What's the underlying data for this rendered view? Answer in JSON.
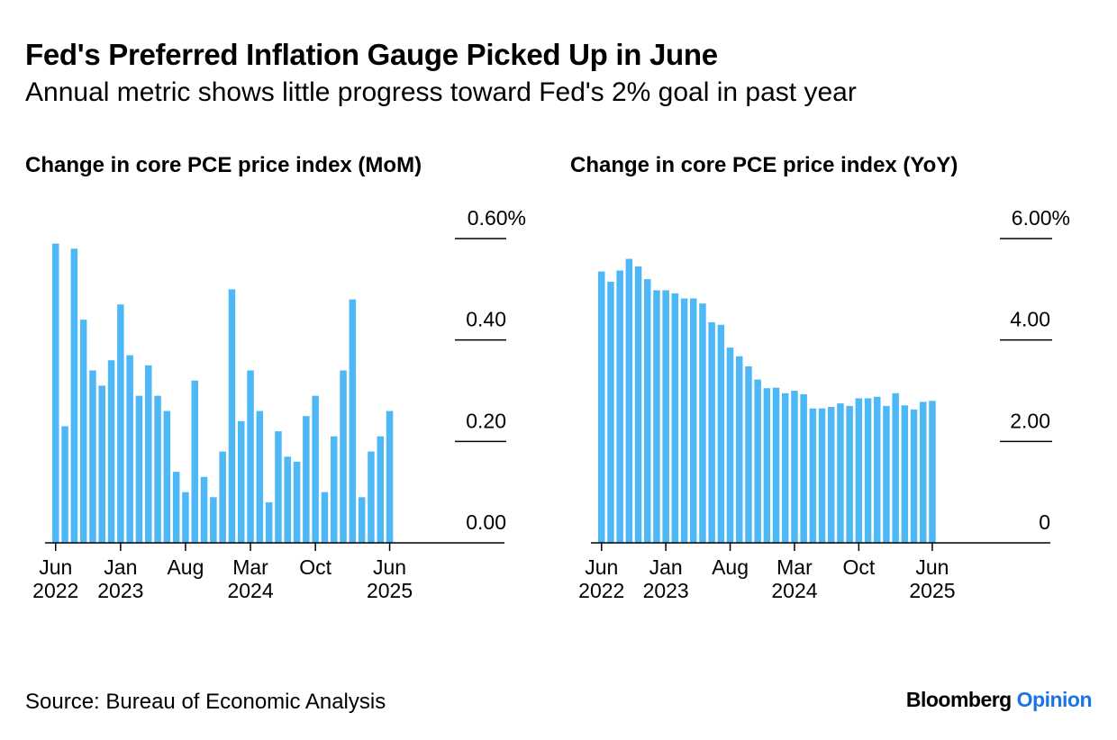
{
  "header": {
    "title": "Fed's Preferred Inflation Gauge Picked Up in June",
    "subtitle": "Annual metric shows little progress toward Fed's 2% goal in past year"
  },
  "footer": {
    "source": "Source: Bureau of Economic Analysis",
    "brand_main": "Bloomberg",
    "brand_accent": "Opinion"
  },
  "colors": {
    "bar": "#4db8f5",
    "axis": "#000000",
    "brand_accent": "#1a73e8"
  },
  "chart_data": [
    {
      "type": "bar",
      "title": "Change in core PCE price index (MoM)",
      "xlabel": "",
      "ylabel": "",
      "ylim": [
        0,
        0.6
      ],
      "y_ticks": [
        {
          "value": 0.6,
          "label": "0.60%"
        },
        {
          "value": 0.4,
          "label": "0.40"
        },
        {
          "value": 0.2,
          "label": "0.20"
        },
        {
          "value": 0.0,
          "label": "0.00"
        }
      ],
      "x_ticks": [
        {
          "index": 0,
          "label_top": "Jun",
          "label_bottom": "2022"
        },
        {
          "index": 7,
          "label_top": "Jan",
          "label_bottom": "2023"
        },
        {
          "index": 14,
          "label_top": "Aug",
          "label_bottom": ""
        },
        {
          "index": 21,
          "label_top": "Mar",
          "label_bottom": "2024"
        },
        {
          "index": 28,
          "label_top": "Oct",
          "label_bottom": ""
        },
        {
          "index": 36,
          "label_top": "Jun",
          "label_bottom": "2025"
        }
      ],
      "categories": [
        "Jun 2022",
        "Jul 2022",
        "Aug 2022",
        "Sep 2022",
        "Oct 2022",
        "Nov 2022",
        "Dec 2022",
        "Jan 2023",
        "Feb 2023",
        "Mar 2023",
        "Apr 2023",
        "May 2023",
        "Jun 2023",
        "Jul 2023",
        "Aug 2023",
        "Sep 2023",
        "Oct 2023",
        "Nov 2023",
        "Dec 2023",
        "Jan 2024",
        "Feb 2024",
        "Mar 2024",
        "Apr 2024",
        "May 2024",
        "Jun 2024",
        "Jul 2024",
        "Aug 2024",
        "Sep 2024",
        "Oct 2024",
        "Nov 2024",
        "Dec 2024",
        "Jan 2025",
        "Feb 2025",
        "Mar 2025",
        "Apr 2025",
        "May 2025",
        "Jun 2025"
      ],
      "values": [
        0.59,
        0.23,
        0.58,
        0.44,
        0.34,
        0.31,
        0.36,
        0.47,
        0.37,
        0.29,
        0.35,
        0.29,
        0.26,
        0.14,
        0.1,
        0.32,
        0.13,
        0.09,
        0.18,
        0.5,
        0.24,
        0.34,
        0.26,
        0.08,
        0.22,
        0.17,
        0.16,
        0.25,
        0.29,
        0.1,
        0.21,
        0.34,
        0.48,
        0.09,
        0.18,
        0.21,
        0.26
      ]
    },
    {
      "type": "bar",
      "title": "Change in core PCE price index (YoY)",
      "xlabel": "",
      "ylabel": "",
      "ylim": [
        0,
        6
      ],
      "y_ticks": [
        {
          "value": 6,
          "label": "6.00%"
        },
        {
          "value": 4,
          "label": "4.00"
        },
        {
          "value": 2,
          "label": "2.00"
        },
        {
          "value": 0,
          "label": "0"
        }
      ],
      "x_ticks": [
        {
          "index": 0,
          "label_top": "Jun",
          "label_bottom": "2022"
        },
        {
          "index": 7,
          "label_top": "Jan",
          "label_bottom": "2023"
        },
        {
          "index": 14,
          "label_top": "Aug",
          "label_bottom": ""
        },
        {
          "index": 21,
          "label_top": "Mar",
          "label_bottom": "2024"
        },
        {
          "index": 28,
          "label_top": "Oct",
          "label_bottom": ""
        },
        {
          "index": 36,
          "label_top": "Jun",
          "label_bottom": "2025"
        }
      ],
      "categories": [
        "Jun 2022",
        "Jul 2022",
        "Aug 2022",
        "Sep 2022",
        "Oct 2022",
        "Nov 2022",
        "Dec 2022",
        "Jan 2023",
        "Feb 2023",
        "Mar 2023",
        "Apr 2023",
        "May 2023",
        "Jun 2023",
        "Jul 2023",
        "Aug 2023",
        "Sep 2023",
        "Oct 2023",
        "Nov 2023",
        "Dec 2023",
        "Jan 2024",
        "Feb 2024",
        "Mar 2024",
        "Apr 2024",
        "May 2024",
        "Jun 2024",
        "Jul 2024",
        "Aug 2024",
        "Sep 2024",
        "Oct 2024",
        "Nov 2024",
        "Dec 2024",
        "Jan 2025",
        "Feb 2025",
        "Mar 2025",
        "Apr 2025",
        "May 2025",
        "Jun 2025"
      ],
      "values": [
        5.35,
        5.15,
        5.37,
        5.6,
        5.45,
        5.2,
        4.98,
        4.98,
        4.92,
        4.82,
        4.82,
        4.72,
        4.35,
        4.3,
        3.85,
        3.68,
        3.48,
        3.22,
        3.05,
        3.06,
        2.95,
        3.0,
        2.93,
        2.65,
        2.65,
        2.68,
        2.75,
        2.7,
        2.85,
        2.85,
        2.88,
        2.7,
        2.95,
        2.71,
        2.63,
        2.78,
        2.8
      ]
    }
  ]
}
